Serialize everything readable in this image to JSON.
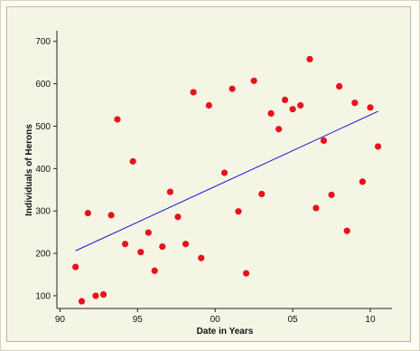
{
  "chart_data": {
    "type": "scatter",
    "xlabel": "Date in Years",
    "ylabel": "Individuals of Herons",
    "x_ticks": [
      "90",
      "95",
      "00",
      "05",
      "10"
    ],
    "y_ticks": [
      "100",
      "200",
      "300",
      "400",
      "500",
      "600",
      "700"
    ],
    "xlim": [
      1989.8,
      2011.4
    ],
    "ylim": [
      70,
      725
    ],
    "points": [
      {
        "x": 1991.0,
        "y": 168
      },
      {
        "x": 1991.4,
        "y": 87
      },
      {
        "x": 1991.8,
        "y": 295
      },
      {
        "x": 1992.3,
        "y": 100
      },
      {
        "x": 1992.8,
        "y": 103
      },
      {
        "x": 1993.3,
        "y": 290
      },
      {
        "x": 1993.7,
        "y": 516
      },
      {
        "x": 1994.2,
        "y": 222
      },
      {
        "x": 1994.7,
        "y": 417
      },
      {
        "x": 1995.2,
        "y": 203
      },
      {
        "x": 1995.7,
        "y": 249
      },
      {
        "x": 1996.1,
        "y": 159
      },
      {
        "x": 1996.6,
        "y": 216
      },
      {
        "x": 1997.1,
        "y": 345
      },
      {
        "x": 1997.6,
        "y": 286
      },
      {
        "x": 1998.1,
        "y": 222
      },
      {
        "x": 1998.6,
        "y": 580
      },
      {
        "x": 1999.1,
        "y": 189
      },
      {
        "x": 1999.6,
        "y": 549
      },
      {
        "x": 2000.6,
        "y": 390
      },
      {
        "x": 2001.1,
        "y": 588
      },
      {
        "x": 2001.5,
        "y": 299
      },
      {
        "x": 2002.0,
        "y": 153
      },
      {
        "x": 2002.5,
        "y": 607
      },
      {
        "x": 2003.0,
        "y": 340
      },
      {
        "x": 2003.6,
        "y": 530
      },
      {
        "x": 2004.1,
        "y": 493
      },
      {
        "x": 2004.5,
        "y": 562
      },
      {
        "x": 2005.0,
        "y": 540
      },
      {
        "x": 2005.5,
        "y": 549
      },
      {
        "x": 2006.1,
        "y": 658
      },
      {
        "x": 2006.5,
        "y": 307
      },
      {
        "x": 2007.0,
        "y": 466
      },
      {
        "x": 2007.5,
        "y": 338
      },
      {
        "x": 2008.0,
        "y": 594
      },
      {
        "x": 2008.5,
        "y": 253
      },
      {
        "x": 2009.0,
        "y": 555
      },
      {
        "x": 2009.5,
        "y": 369
      },
      {
        "x": 2010.0,
        "y": 544
      },
      {
        "x": 2010.5,
        "y": 452
      }
    ],
    "trendline": {
      "x": [
        1991.0,
        2010.5
      ],
      "y": [
        206,
        535
      ]
    },
    "grid": false,
    "legend": "none",
    "colors": {
      "points": "#e8121a",
      "trendline": "#1414d8",
      "axes": "#222222"
    }
  }
}
